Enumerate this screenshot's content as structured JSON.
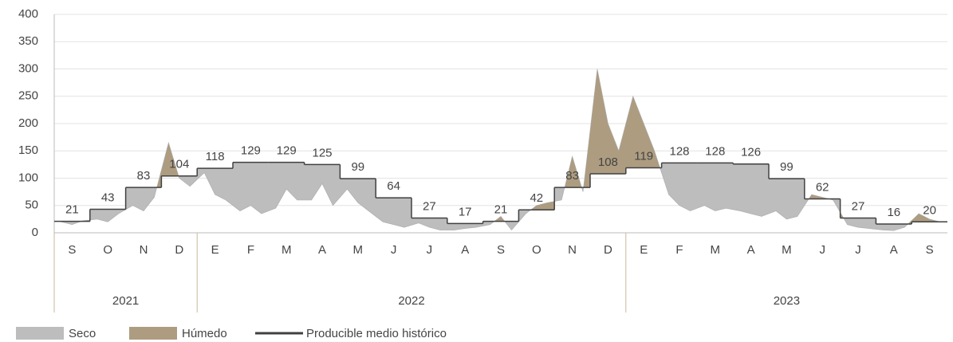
{
  "chart_data": {
    "type": "area-step",
    "categories": [
      "S",
      "O",
      "N",
      "D",
      "E",
      "F",
      "M",
      "A",
      "M",
      "J",
      "J",
      "A",
      "S",
      "O",
      "N",
      "D",
      "E",
      "F",
      "M",
      "A",
      "M",
      "J",
      "J",
      "A",
      "S"
    ],
    "years": [
      {
        "label": "2021",
        "months": 4
      },
      {
        "label": "2022",
        "months": 12
      },
      {
        "label": "2023",
        "months": 9
      }
    ],
    "xlim": [
      0,
      25
    ],
    "ylim": [
      0,
      400
    ],
    "yticks": [
      0,
      50,
      100,
      150,
      200,
      250,
      300,
      350,
      400
    ],
    "grid": true,
    "legend": [
      {
        "name": "Seco",
        "color": "#bdbdbd"
      },
      {
        "name": "Húmedo",
        "color": "#ad9c80"
      }
    ],
    "series": [
      {
        "name": "Producible medio histórico",
        "color": "#404040",
        "values": [
          21,
          43,
          83,
          104,
          118,
          129,
          129,
          125,
          99,
          64,
          27,
          17,
          21,
          42,
          83,
          108,
          119,
          128,
          128,
          126,
          99,
          62,
          27,
          16,
          20
        ]
      }
    ],
    "daily": {
      "x": [
        0.2,
        0.5,
        0.8,
        1.2,
        1.5,
        1.8,
        2.2,
        2.5,
        2.8,
        3.2,
        3.5,
        3.8,
        4.2,
        4.5,
        4.8,
        5.2,
        5.5,
        5.8,
        6.2,
        6.5,
        6.8,
        7.2,
        7.5,
        7.8,
        8.2,
        8.5,
        8.8,
        9.2,
        9.5,
        9.8,
        10.2,
        10.5,
        10.8,
        11.2,
        11.5,
        11.8,
        12.2,
        12.5,
        12.8,
        13.2,
        13.5,
        13.8,
        14.2,
        14.5,
        14.8,
        15.2,
        15.5,
        15.8,
        16.2,
        16.5,
        16.8,
        17.2,
        17.5,
        17.8,
        18.2,
        18.5,
        18.8,
        19.2,
        19.5,
        19.8,
        20.2,
        20.5,
        20.8,
        21.2,
        21.5,
        21.8,
        22.2,
        22.5,
        22.8,
        23.2,
        23.5,
        23.8,
        24.2,
        24.5,
        24.8
      ],
      "values": [
        20,
        15,
        22,
        25,
        20,
        35,
        50,
        40,
        65,
        165,
        100,
        85,
        110,
        70,
        60,
        40,
        50,
        35,
        45,
        80,
        60,
        60,
        90,
        50,
        80,
        55,
        40,
        20,
        15,
        10,
        18,
        10,
        5,
        5,
        8,
        10,
        15,
        30,
        5,
        35,
        50,
        55,
        60,
        140,
        75,
        300,
        200,
        150,
        250,
        200,
        150,
        70,
        50,
        40,
        50,
        40,
        45,
        40,
        35,
        30,
        40,
        25,
        30,
        70,
        65,
        60,
        15,
        10,
        8,
        5,
        4,
        10,
        35,
        25,
        20
      ]
    }
  }
}
